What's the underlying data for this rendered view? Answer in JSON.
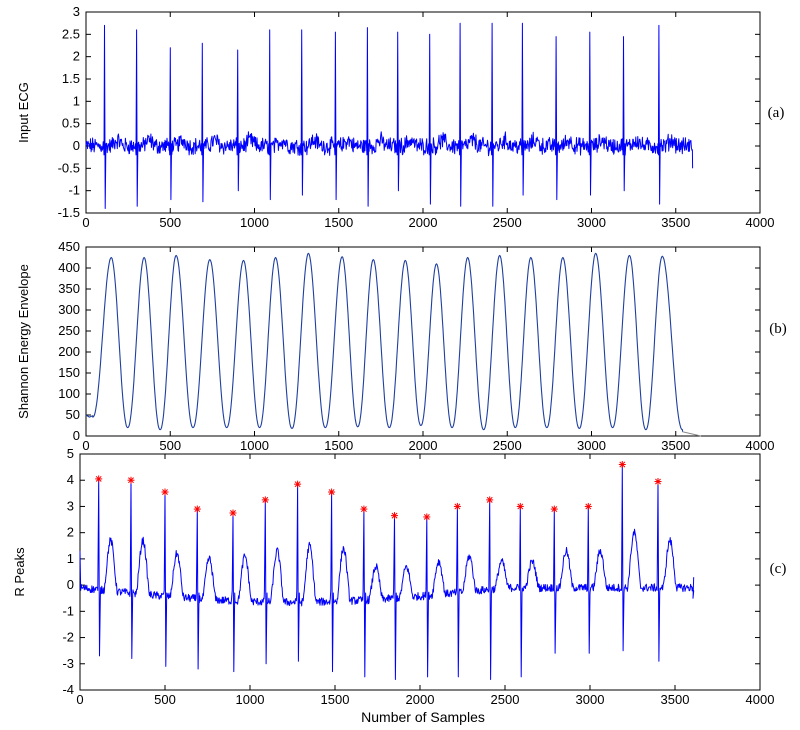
{
  "xlabel": "Number of Samples",
  "chart_data": [
    {
      "type": "line",
      "panel_label": "(a)",
      "ylabel": "Input ECG",
      "xlim": [
        0,
        4000
      ],
      "ylim": [
        -1.5,
        3
      ],
      "xticks": [
        "0",
        "500",
        "1000",
        "1500",
        "2000",
        "2500",
        "3000",
        "3500",
        "4000"
      ],
      "yticks": [
        "-1.5",
        "-1",
        "-0.5",
        "0",
        "0.5",
        "1",
        "1.5",
        "2",
        "2.5",
        "3"
      ],
      "color": "#0000ff",
      "grid": false,
      "r_peak_x": [
        110,
        300,
        500,
        690,
        900,
        1090,
        1280,
        1480,
        1670,
        1850,
        2040,
        2220,
        2410,
        2590,
        2790,
        2990,
        3190,
        3400
      ],
      "r_peak_y": [
        2.7,
        2.6,
        2.2,
        2.3,
        2.15,
        2.6,
        2.6,
        2.55,
        2.65,
        2.55,
        2.5,
        2.75,
        2.75,
        2.75,
        2.45,
        2.55,
        2.45,
        2.7
      ],
      "s_trough_y": [
        -1.4,
        -1.35,
        -1.2,
        -1.25,
        -1.0,
        -1.2,
        -1.1,
        -1.2,
        -1.35,
        -1.0,
        -1.3,
        -1.35,
        -1.35,
        -1.1,
        -1.2,
        -1.1,
        -1.0,
        -1.3
      ],
      "x_end": 3600
    },
    {
      "type": "line",
      "panel_label": "(b)",
      "ylabel": "Shannon Energy Envelope",
      "xlim": [
        0,
        4000
      ],
      "ylim": [
        0,
        450
      ],
      "xticks": [
        "0",
        "500",
        "1000",
        "1500",
        "2000",
        "2500",
        "3000",
        "3500",
        "4000"
      ],
      "yticks": [
        "0",
        "50",
        "100",
        "150",
        "200",
        "250",
        "300",
        "350",
        "400",
        "450"
      ],
      "color": "#1f3fa0",
      "grid": false,
      "peak_x": [
        150,
        345,
        535,
        735,
        935,
        1125,
        1320,
        1520,
        1705,
        1895,
        2080,
        2265,
        2455,
        2640,
        2830,
        3025,
        3225,
        3420
      ],
      "peak_y": [
        425,
        425,
        430,
        420,
        418,
        425,
        435,
        427,
        420,
        418,
        410,
        425,
        430,
        425,
        425,
        435,
        430,
        428
      ],
      "trough_y": [
        45,
        20,
        15,
        20,
        20,
        20,
        18,
        20,
        22,
        20,
        25,
        20,
        15,
        20,
        20,
        18,
        20,
        15
      ],
      "tail": {
        "x": [
          3540,
          3650
        ],
        "y": [
          10,
          0
        ]
      }
    },
    {
      "type": "line",
      "panel_label": "(c)",
      "ylabel": "R Peaks",
      "xlim": [
        0,
        4000
      ],
      "ylim": [
        -4,
        5
      ],
      "xticks": [
        "0",
        "500",
        "1000",
        "1500",
        "2000",
        "2500",
        "3000",
        "3500",
        "4000"
      ],
      "yticks": [
        "-4",
        "-3",
        "-2",
        "-1",
        "0",
        "1",
        "2",
        "3",
        "4",
        "5"
      ],
      "color": "#0000ff",
      "marker_color": "#ff0000",
      "grid": false,
      "r_peak_x": [
        110,
        300,
        500,
        690,
        900,
        1090,
        1280,
        1480,
        1670,
        1850,
        2040,
        2220,
        2410,
        2590,
        2790,
        2990,
        3190,
        3400
      ],
      "r_peak_y": [
        4.05,
        4.0,
        3.55,
        2.9,
        2.75,
        3.25,
        3.85,
        3.55,
        2.9,
        2.65,
        2.6,
        3.0,
        3.25,
        3.0,
        2.9,
        3.0,
        4.6,
        3.95
      ],
      "s_trough_y": [
        -2.7,
        -2.8,
        -3.1,
        -3.2,
        -3.3,
        -3.0,
        -2.9,
        -3.3,
        -3.5,
        -3.6,
        -3.5,
        -3.5,
        -3.6,
        -3.5,
        -2.6,
        -2.6,
        -2.5,
        -2.9
      ],
      "t_wave_y": [
        1.7,
        1.7,
        1.2,
        1.0,
        1.1,
        1.3,
        1.5,
        1.4,
        0.7,
        0.7,
        0.9,
        1.1,
        0.9,
        0.9,
        1.3,
        1.3,
        2.0,
        1.7
      ],
      "x_end": 3610
    }
  ]
}
